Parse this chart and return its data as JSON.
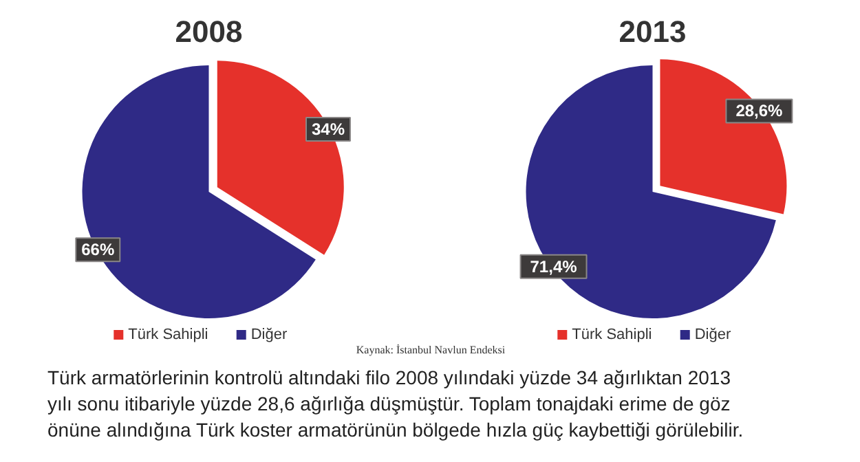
{
  "chart_data": [
    {
      "type": "pie",
      "title": "2008",
      "categories": [
        "Türk Sahipli",
        "Diğer"
      ],
      "values": [
        34,
        66
      ],
      "colors": [
        "#e5312b",
        "#2f2a86"
      ],
      "value_labels": [
        "34%",
        "66%"
      ],
      "legend": "bottom",
      "annotations": [
        "Kaynak: İstanbul Navlun Endeksi",
        "Türk armatörlerinin kontrolü altındaki filo 2008 yılındaki yüzde 34 ağırlıktan 2013 yılı sonu itibariyle yüzde 28,6 ağırlığa düşmüştür. Toplam tonajdaki erime de göz önüne alındığına Türk koster armatörünün bölgede hızla güç kaybettiği görülebilir."
      ]
    },
    {
      "type": "pie",
      "title": "2013",
      "categories": [
        "Türk Sahipli",
        "Diğer"
      ],
      "values": [
        28.6,
        71.4
      ],
      "colors": [
        "#e5312b",
        "#2f2a86"
      ],
      "value_labels": [
        "28,6%",
        "71,4%"
      ],
      "legend": "bottom"
    }
  ]
}
